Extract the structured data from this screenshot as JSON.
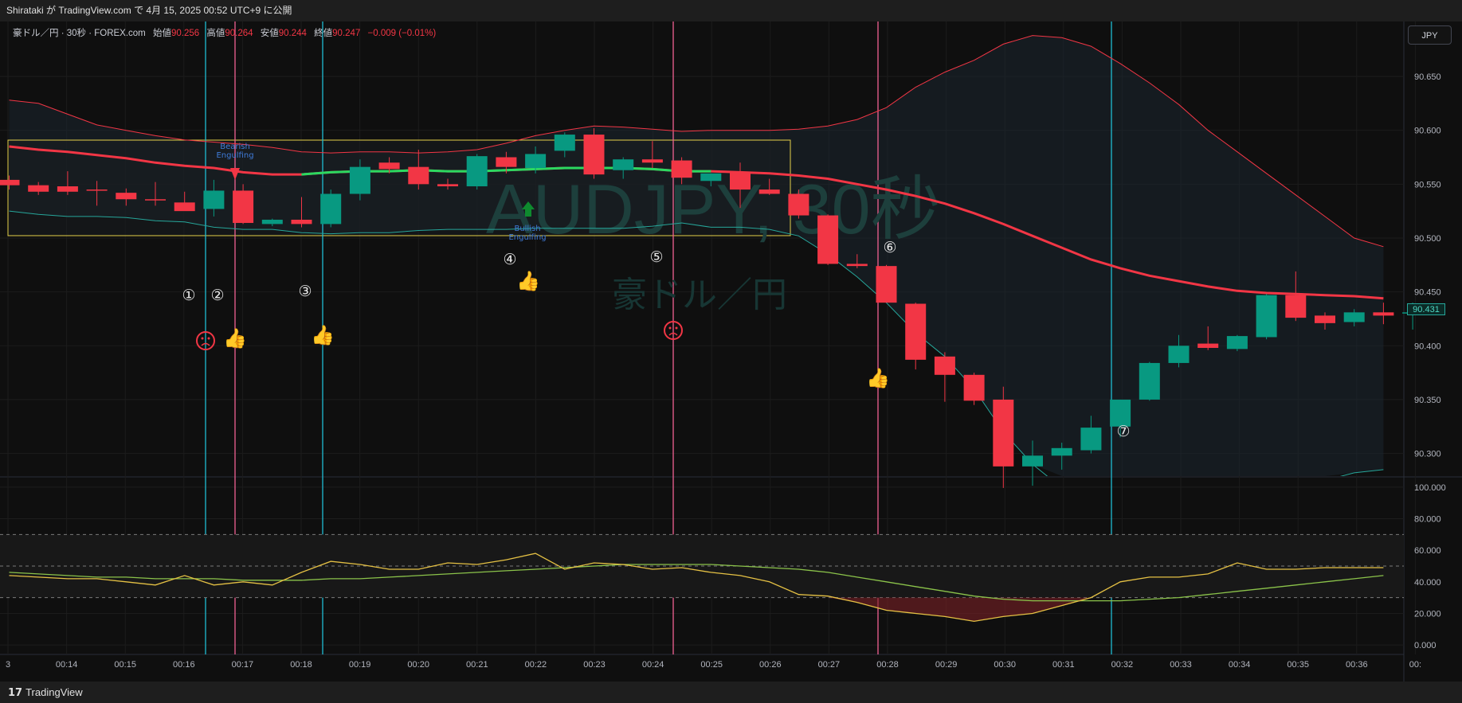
{
  "header": {
    "publish_text": "Shirataki が TradingView.com で 4月 15, 2025 00:52 UTC+9 に公開"
  },
  "legend": {
    "symbol": "豪ドル／円 · 30秒 · FOREX.com",
    "open_label": "始値",
    "open_value": "90.256",
    "high_label": "高値",
    "high_value": "90.264",
    "low_label": "安値",
    "low_value": "90.244",
    "close_label": "終値",
    "close_value": "90.247",
    "change": "−0.009 (−0.01%)"
  },
  "currency_button": "JPY",
  "last_price": "90.431",
  "footer": {
    "brand": "TradingView"
  },
  "watermark": {
    "symbol": "AUDJPY, 30秒",
    "name": "豪ドル／円"
  },
  "colors": {
    "up": "#089981",
    "down": "#f23645",
    "ma": "#f23645",
    "bb": "#f23645",
    "cyan_line": "#1fbcd2",
    "pink_line": "#f06292",
    "rsi": "#e5c144",
    "rsi_ma": "#8bc34a"
  },
  "chart_data": [
    {
      "type": "candlestick",
      "title": "AUDJPY, 30秒",
      "x_ticks": [
        "3",
        "00:14",
        "00:15",
        "00:16",
        "00:17",
        "00:18",
        "00:19",
        "00:20",
        "00:21",
        "00:22",
        "00:23",
        "00:24",
        "00:25",
        "00:26",
        "00:27",
        "00:28",
        "00:29",
        "00:30",
        "00:31",
        "00:32",
        "00:33",
        "00:34",
        "00:35",
        "00:36",
        "00:"
      ],
      "y_ticks": [
        "90.650",
        "90.600",
        "90.550",
        "90.500",
        "90.450",
        "90.400",
        "90.350",
        "90.300"
      ],
      "ylim": [
        90.279,
        90.701
      ],
      "candles": [
        {
          "o": 90.554,
          "h": 90.558,
          "l": 90.545,
          "c": 90.549
        },
        {
          "o": 90.549,
          "h": 90.552,
          "l": 90.54,
          "c": 90.543
        },
        {
          "o": 90.548,
          "h": 90.562,
          "l": 90.54,
          "c": 90.543
        },
        {
          "o": 90.545,
          "h": 90.553,
          "l": 90.53,
          "c": 90.544
        },
        {
          "o": 90.542,
          "h": 90.546,
          "l": 90.53,
          "c": 90.536
        },
        {
          "o": 90.536,
          "h": 90.552,
          "l": 90.53,
          "c": 90.535
        },
        {
          "o": 90.533,
          "h": 90.543,
          "l": 90.527,
          "c": 90.525
        },
        {
          "o": 90.527,
          "h": 90.554,
          "l": 90.52,
          "c": 90.544
        },
        {
          "o": 90.544,
          "h": 90.55,
          "l": 90.513,
          "c": 90.514
        },
        {
          "o": 90.513,
          "h": 90.518,
          "l": 90.511,
          "c": 90.517
        },
        {
          "o": 90.517,
          "h": 90.538,
          "l": 90.51,
          "c": 90.513
        },
        {
          "o": 90.513,
          "h": 90.545,
          "l": 90.51,
          "c": 90.541
        },
        {
          "o": 90.541,
          "h": 90.573,
          "l": 90.535,
          "c": 90.566
        },
        {
          "o": 90.57,
          "h": 90.575,
          "l": 90.56,
          "c": 90.564
        },
        {
          "o": 90.566,
          "h": 90.582,
          "l": 90.545,
          "c": 90.55
        },
        {
          "o": 90.55,
          "h": 90.555,
          "l": 90.545,
          "c": 90.548
        },
        {
          "o": 90.548,
          "h": 90.578,
          "l": 90.545,
          "c": 90.576
        },
        {
          "o": 90.575,
          "h": 90.58,
          "l": 90.56,
          "c": 90.566
        },
        {
          "o": 90.565,
          "h": 90.585,
          "l": 90.56,
          "c": 90.578
        },
        {
          "o": 90.581,
          "h": 90.598,
          "l": 90.575,
          "c": 90.596
        },
        {
          "o": 90.596,
          "h": 90.602,
          "l": 90.555,
          "c": 90.559
        },
        {
          "o": 90.563,
          "h": 90.575,
          "l": 90.555,
          "c": 90.573
        },
        {
          "o": 90.573,
          "h": 90.59,
          "l": 90.565,
          "c": 90.57
        },
        {
          "o": 90.572,
          "h": 90.575,
          "l": 90.55,
          "c": 90.556
        },
        {
          "o": 90.553,
          "h": 90.56,
          "l": 90.548,
          "c": 90.56
        },
        {
          "o": 90.561,
          "h": 90.57,
          "l": 90.528,
          "c": 90.545
        },
        {
          "o": 90.545,
          "h": 90.555,
          "l": 90.54,
          "c": 90.541
        },
        {
          "o": 90.541,
          "h": 90.545,
          "l": 90.518,
          "c": 90.521
        },
        {
          "o": 90.521,
          "h": 90.522,
          "l": 90.475,
          "c": 90.476
        },
        {
          "o": 90.476,
          "h": 90.485,
          "l": 90.472,
          "c": 90.474
        },
        {
          "o": 90.474,
          "h": 90.475,
          "l": 90.44,
          "c": 90.44
        },
        {
          "o": 90.439,
          "h": 90.44,
          "l": 90.378,
          "c": 90.387
        },
        {
          "o": 90.39,
          "h": 90.394,
          "l": 90.348,
          "c": 90.373
        },
        {
          "o": 90.373,
          "h": 90.375,
          "l": 90.345,
          "c": 90.349
        },
        {
          "o": 90.35,
          "h": 90.362,
          "l": 90.268,
          "c": 90.288
        },
        {
          "o": 90.288,
          "h": 90.312,
          "l": 90.27,
          "c": 90.298
        },
        {
          "o": 90.298,
          "h": 90.31,
          "l": 90.285,
          "c": 90.305
        },
        {
          "o": 90.303,
          "h": 90.335,
          "l": 90.3,
          "c": 90.324
        },
        {
          "o": 90.325,
          "h": 90.35,
          "l": 90.315,
          "c": 90.35
        },
        {
          "o": 90.35,
          "h": 90.385,
          "l": 90.349,
          "c": 90.384
        },
        {
          "o": 90.384,
          "h": 90.41,
          "l": 90.38,
          "c": 90.4
        },
        {
          "o": 90.402,
          "h": 90.418,
          "l": 90.396,
          "c": 90.398
        },
        {
          "o": 90.397,
          "h": 90.41,
          "l": 90.395,
          "c": 90.409
        },
        {
          "o": 90.408,
          "h": 90.448,
          "l": 90.406,
          "c": 90.447
        },
        {
          "o": 90.447,
          "h": 90.469,
          "l": 90.423,
          "c": 90.426
        },
        {
          "o": 90.428,
          "h": 90.431,
          "l": 90.415,
          "c": 90.421
        },
        {
          "o": 90.422,
          "h": 90.434,
          "l": 90.418,
          "c": 90.431
        },
        {
          "o": 90.431,
          "h": 90.44,
          "l": 90.42,
          "c": 90.428
        },
        {
          "o": 90.431,
          "h": 90.44,
          "l": 90.415,
          "c": 90.431
        }
      ],
      "bb_upper": [
        90.628,
        90.625,
        90.615,
        90.605,
        90.6,
        90.595,
        90.591,
        90.589,
        90.587,
        90.584,
        90.58,
        90.579,
        90.58,
        90.58,
        90.579,
        90.58,
        90.582,
        90.588,
        90.595,
        90.6,
        90.604,
        90.603,
        90.601,
        90.599,
        90.6,
        90.6,
        90.6,
        90.601,
        90.604,
        90.61,
        90.621,
        90.64,
        90.654,
        90.665,
        90.68,
        90.688,
        90.686,
        90.678,
        90.662,
        90.644,
        90.624,
        90.6,
        90.58,
        90.56,
        90.54,
        90.52,
        90.5,
        90.492
      ],
      "bb_lower": [
        90.525,
        90.522,
        90.52,
        90.52,
        90.519,
        90.516,
        90.515,
        90.51,
        90.508,
        90.508,
        90.505,
        90.504,
        90.505,
        90.505,
        90.507,
        90.508,
        90.508,
        90.508,
        90.509,
        90.509,
        90.509,
        90.509,
        90.511,
        90.514,
        90.51,
        90.51,
        90.508,
        90.502,
        90.485,
        90.464,
        90.44,
        90.412,
        90.39,
        90.36,
        90.32,
        90.29,
        90.268,
        90.255,
        90.24,
        90.23,
        90.225,
        90.24,
        90.25,
        90.26,
        90.268,
        90.275,
        90.282,
        90.285
      ],
      "ma": [
        90.585,
        90.582,
        90.58,
        90.577,
        90.574,
        90.57,
        90.567,
        90.565,
        90.561,
        90.559,
        90.559,
        90.561,
        90.562,
        90.562,
        90.563,
        90.562,
        90.562,
        90.563,
        90.564,
        90.565,
        90.565,
        90.565,
        90.564,
        90.562,
        90.562,
        90.561,
        90.56,
        90.558,
        90.555,
        90.55,
        90.545,
        90.539,
        90.532,
        90.523,
        90.513,
        90.502,
        90.491,
        90.48,
        90.472,
        90.465,
        90.46,
        90.455,
        90.451,
        90.449,
        90.448,
        90.447,
        90.446,
        90.444
      ],
      "annotations": [
        "Bearish Engulfing",
        "Bullish Engulfing",
        "①",
        "②",
        "③",
        "④",
        "⑤",
        "⑥",
        "⑦"
      ]
    },
    {
      "type": "line",
      "y_ticks": [
        "100.000",
        "80.000",
        "60.000",
        "40.000",
        "20.000",
        "0.000"
      ],
      "ylim": [
        -6,
        106
      ],
      "levels": [
        70,
        50,
        30
      ],
      "series": [
        {
          "values": [
            44,
            43,
            42,
            42,
            40,
            38,
            44,
            38,
            40,
            38,
            46,
            53,
            51,
            48,
            48,
            52,
            51,
            54,
            58,
            48,
            52,
            51,
            48,
            49,
            46,
            44,
            40,
            32,
            31,
            27,
            22,
            20,
            18,
            15,
            18,
            20,
            25,
            30,
            40,
            43,
            43,
            45,
            52,
            48,
            48,
            49,
            49,
            49
          ]
        },
        {
          "values": [
            46,
            45,
            44,
            43,
            43,
            42,
            42,
            42,
            41,
            41,
            41,
            42,
            42,
            43,
            44,
            45,
            46,
            47,
            48,
            49,
            50,
            51,
            51,
            51,
            51,
            50,
            49,
            48,
            46,
            43,
            40,
            37,
            34,
            31,
            29,
            28,
            28,
            28,
            28,
            29,
            30,
            32,
            34,
            36,
            38,
            40,
            42,
            44
          ]
        }
      ]
    }
  ]
}
